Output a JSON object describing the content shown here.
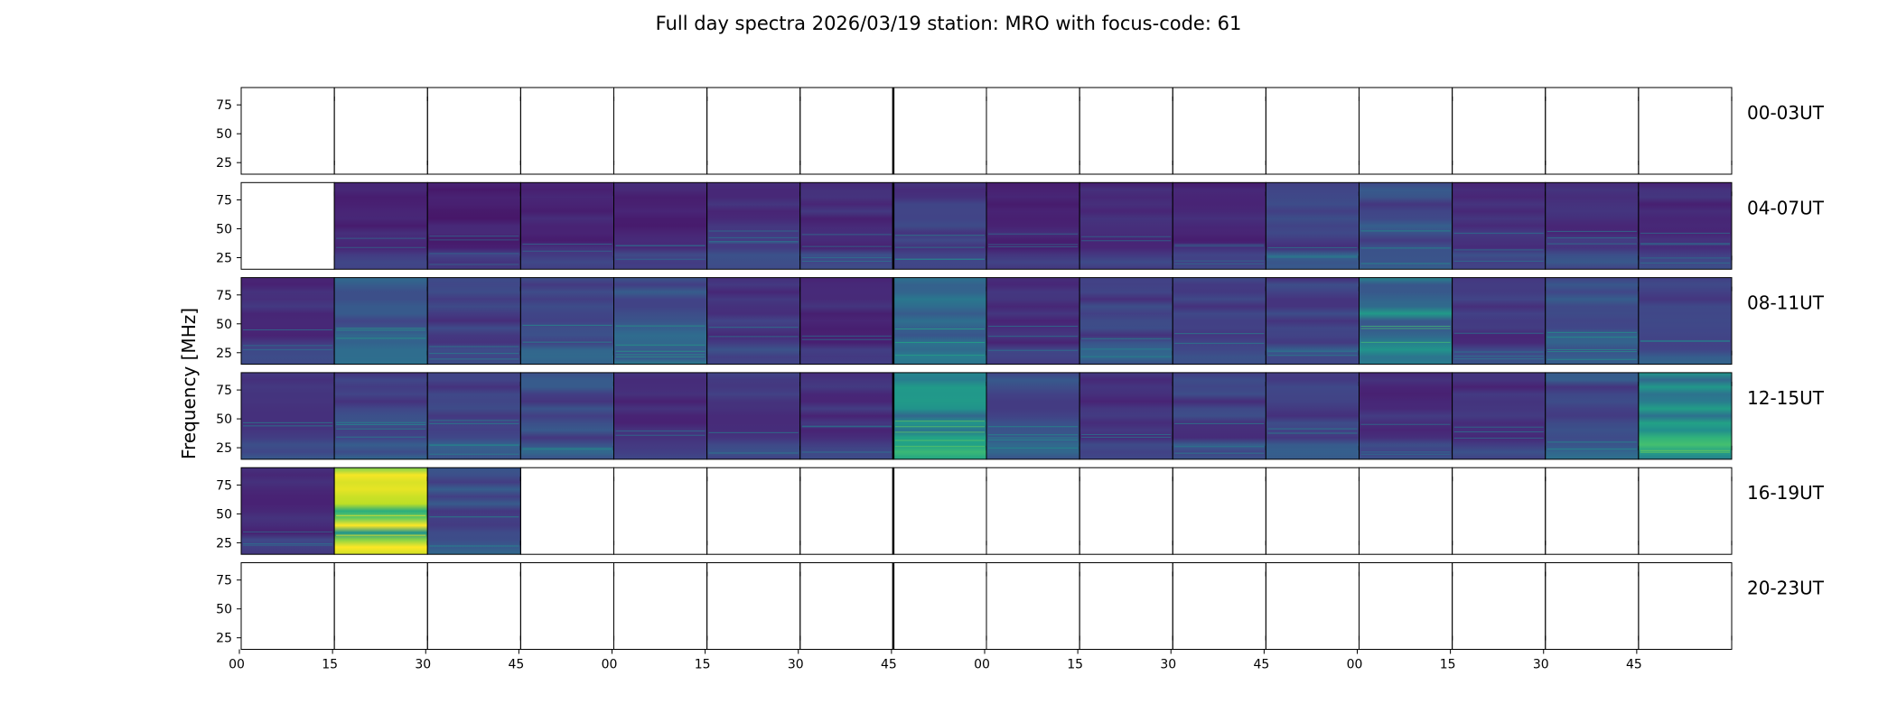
{
  "chart_data": {
    "type": "heatmap",
    "title": "Full day spectra 2026/03/19 station: MRO with focus-code: 61",
    "ylabel": "Frequency [MHz]",
    "xlabel": "",
    "ylim": [
      15,
      90
    ],
    "yticks": [
      25,
      50,
      75
    ],
    "ytick_labels": [
      "25",
      "50",
      "75"
    ],
    "xtick_labels": [
      "00",
      "15",
      "30",
      "45",
      "00",
      "15",
      "30",
      "45",
      "00",
      "15",
      "30",
      "45",
      "00",
      "15",
      "30",
      "45"
    ],
    "colormap": [
      "#440154",
      "#482475",
      "#414487",
      "#355f8d",
      "#2a788e",
      "#21918c",
      "#22a884",
      "#44bf70",
      "#7ad151",
      "#bddf26",
      "#fde725"
    ],
    "row_labels": [
      "00-03UT",
      "04-07UT",
      "08-11UT",
      "12-15UT",
      "16-19UT",
      "20-23UT"
    ],
    "panels_per_row": 16,
    "available": [
      [
        0,
        0,
        0,
        0,
        0,
        0,
        0,
        0,
        0,
        0,
        0,
        0,
        0,
        0,
        0,
        0
      ],
      [
        0,
        1,
        1,
        1,
        1,
        1,
        1,
        1,
        1,
        1,
        1,
        1,
        1,
        1,
        1,
        1
      ],
      [
        1,
        1,
        1,
        1,
        1,
        1,
        1,
        1,
        1,
        1,
        1,
        1,
        1,
        1,
        1,
        1
      ],
      [
        1,
        1,
        1,
        1,
        1,
        1,
        1,
        1,
        1,
        1,
        1,
        1,
        1,
        1,
        1,
        1
      ],
      [
        1,
        1,
        1,
        0,
        0,
        0,
        0,
        0,
        0,
        0,
        0,
        0,
        0,
        0,
        0,
        0
      ],
      [
        0,
        0,
        0,
        0,
        0,
        0,
        0,
        0,
        0,
        0,
        0,
        0,
        0,
        0,
        0,
        0
      ]
    ],
    "intensity": [
      [
        0,
        0,
        0,
        0,
        0,
        0,
        0,
        0,
        0,
        0,
        0,
        0,
        0,
        0,
        0,
        0
      ],
      [
        0,
        0.12,
        0.1,
        0.12,
        0.12,
        0.15,
        0.14,
        0.2,
        0.12,
        0.13,
        0.12,
        0.2,
        0.25,
        0.15,
        0.17,
        0.14
      ],
      [
        0.14,
        0.3,
        0.2,
        0.26,
        0.3,
        0.17,
        0.13,
        0.35,
        0.15,
        0.22,
        0.2,
        0.2,
        0.45,
        0.17,
        0.27,
        0.2
      ],
      [
        0.2,
        0.22,
        0.2,
        0.24,
        0.14,
        0.18,
        0.15,
        0.5,
        0.25,
        0.15,
        0.2,
        0.22,
        0.15,
        0.15,
        0.25,
        0.55
      ],
      [
        0.13,
        0.85,
        0.25,
        0,
        0,
        0,
        0,
        0,
        0,
        0,
        0,
        0,
        0,
        0,
        0,
        0
      ],
      [
        0,
        0,
        0,
        0,
        0,
        0,
        0,
        0,
        0,
        0,
        0,
        0,
        0,
        0,
        0,
        0
      ]
    ]
  }
}
